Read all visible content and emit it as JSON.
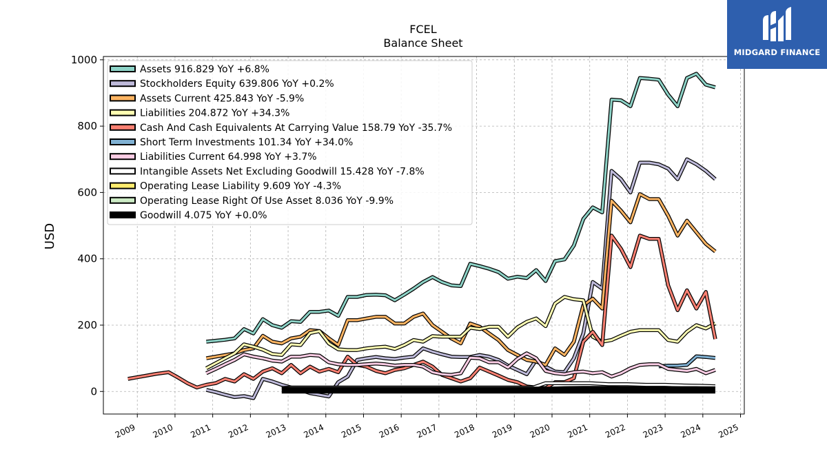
{
  "brand": {
    "name": "MIDGARD FINANCE"
  },
  "chart_data": {
    "type": "line",
    "title": "FCEL",
    "subtitle": "Balance  Sheet",
    "xlabel": "",
    "ylabel": "USD",
    "xlim": [
      2008.1,
      2025.1
    ],
    "ylim": [
      -68,
      1010
    ],
    "x_ticks": [
      "2009",
      "2010",
      "2011",
      "2012",
      "2013",
      "2014",
      "2015",
      "2016",
      "2017",
      "2018",
      "2019",
      "2020",
      "2021",
      "2022",
      "2023",
      "2024",
      "2025"
    ],
    "y_ticks": [
      "0",
      "200",
      "400",
      "600",
      "800",
      "1000"
    ],
    "grid": true,
    "legend_position": "top-left",
    "series": [
      {
        "name": "Assets",
        "legend": "Assets  916.829 YoY +6.8%",
        "color": "#8dd3c7",
        "x": [
          2010.83,
          2011.08,
          2011.33,
          2011.58,
          2011.83,
          2012.08,
          2012.33,
          2012.58,
          2012.83,
          2013.08,
          2013.33,
          2013.58,
          2013.83,
          2014.08,
          2014.33,
          2014.58,
          2014.83,
          2015.08,
          2015.33,
          2015.58,
          2015.83,
          2016.08,
          2016.33,
          2016.58,
          2016.83,
          2017.08,
          2017.33,
          2017.58,
          2017.83,
          2018.08,
          2018.33,
          2018.58,
          2018.83,
          2019.08,
          2019.33,
          2019.58,
          2019.83,
          2020.08,
          2020.33,
          2020.58,
          2020.83,
          2021.08,
          2021.33,
          2021.58,
          2021.83,
          2022.08,
          2022.33,
          2022.58,
          2022.83,
          2023.08,
          2023.33,
          2023.58,
          2023.83,
          2024.08,
          2024.33
        ],
        "y": [
          150,
          153,
          156,
          160,
          188,
          175,
          218,
          200,
          192,
          212,
          210,
          240,
          240,
          244,
          228,
          285,
          285,
          291,
          292,
          290,
          275,
          292,
          310,
          330,
          345,
          330,
          320,
          318,
          385,
          378,
          370,
          360,
          340,
          346,
          342,
          366,
          333,
          393,
          398,
          440,
          520,
          555,
          540,
          880,
          878,
          860,
          945,
          943,
          940,
          895,
          860,
          945,
          958,
          925,
          917
        ]
      },
      {
        "name": "Stockholders Equity",
        "legend": "Stockholders Equity  639.806 YoY +0.2%",
        "color": "#bebada",
        "x": [
          2010.83,
          2011.08,
          2011.33,
          2011.58,
          2011.83,
          2012.08,
          2012.33,
          2012.58,
          2012.83,
          2013.08,
          2013.33,
          2013.58,
          2013.83,
          2014.08,
          2014.33,
          2014.58,
          2014.83,
          2015.08,
          2015.33,
          2015.58,
          2015.83,
          2016.08,
          2016.33,
          2016.58,
          2016.83,
          2017.08,
          2017.33,
          2017.58,
          2017.83,
          2018.08,
          2018.33,
          2018.58,
          2018.83,
          2019.08,
          2019.33,
          2019.58,
          2019.83,
          2020.08,
          2020.33,
          2020.58,
          2020.83,
          2021.08,
          2021.33,
          2021.58,
          2021.83,
          2022.08,
          2022.33,
          2022.58,
          2022.83,
          2023.08,
          2023.33,
          2023.58,
          2023.83,
          2024.08,
          2024.33
        ],
        "y": [
          5,
          -2,
          -10,
          -17,
          -14,
          -20,
          38,
          30,
          20,
          12,
          5,
          -5,
          -10,
          -15,
          28,
          45,
          95,
          100,
          104,
          100,
          98,
          102,
          105,
          130,
          120,
          112,
          105,
          104,
          104,
          110,
          105,
          95,
          78,
          65,
          52,
          95,
          75,
          60,
          58,
          100,
          175,
          330,
          310,
          665,
          640,
          600,
          690,
          690,
          685,
          672,
          640,
          700,
          685,
          665,
          640
        ]
      },
      {
        "name": "Assets Current",
        "legend": "Assets Current  425.843 YoY -5.9%",
        "color": "#fdb462",
        "x": [
          2010.83,
          2011.08,
          2011.33,
          2011.58,
          2011.83,
          2012.08,
          2012.33,
          2012.58,
          2012.83,
          2013.08,
          2013.33,
          2013.58,
          2013.83,
          2014.08,
          2014.33,
          2014.58,
          2014.83,
          2015.08,
          2015.33,
          2015.58,
          2015.83,
          2016.08,
          2016.33,
          2016.58,
          2016.83,
          2017.08,
          2017.33,
          2017.58,
          2017.83,
          2018.08,
          2018.33,
          2018.58,
          2018.83,
          2019.08,
          2019.33,
          2019.58,
          2019.83,
          2020.08,
          2020.33,
          2020.58,
          2020.83,
          2021.08,
          2021.33,
          2021.58,
          2021.83,
          2022.08,
          2022.33,
          2022.58,
          2022.83,
          2023.08,
          2023.33,
          2023.58,
          2023.83,
          2024.08,
          2024.33
        ],
        "y": [
          100,
          105,
          110,
          115,
          125,
          130,
          168,
          150,
          145,
          160,
          165,
          185,
          182,
          160,
          140,
          215,
          215,
          220,
          225,
          225,
          205,
          205,
          225,
          235,
          200,
          180,
          160,
          145,
          205,
          195,
          175,
          155,
          125,
          110,
          95,
          90,
          80,
          130,
          110,
          150,
          260,
          280,
          250,
          575,
          545,
          510,
          595,
          580,
          580,
          530,
          470,
          515,
          480,
          445,
          422
        ]
      },
      {
        "name": "Liabilities",
        "legend": "Liabilities  204.872 YoY +34.3%",
        "color": "#ffffb3",
        "x": [
          2010.83,
          2011.08,
          2011.33,
          2011.58,
          2011.83,
          2012.08,
          2012.33,
          2012.58,
          2012.83,
          2013.08,
          2013.33,
          2013.58,
          2013.83,
          2014.08,
          2014.33,
          2014.58,
          2014.83,
          2015.08,
          2015.33,
          2015.58,
          2015.83,
          2016.08,
          2016.33,
          2016.58,
          2016.83,
          2017.08,
          2017.33,
          2017.58,
          2017.83,
          2018.08,
          2018.33,
          2018.58,
          2018.83,
          2019.08,
          2019.33,
          2019.58,
          2019.83,
          2020.08,
          2020.33,
          2020.58,
          2020.83,
          2021.08,
          2021.33,
          2021.58,
          2021.83,
          2022.08,
          2022.33,
          2022.58,
          2022.83,
          2023.08,
          2023.33,
          2023.58,
          2023.83,
          2024.08,
          2024.33
        ],
        "y": [
          70,
          85,
          100,
          115,
          142,
          135,
          126,
          113,
          110,
          142,
          140,
          176,
          182,
          145,
          127,
          125,
          125,
          130,
          133,
          135,
          128,
          140,
          155,
          150,
          167,
          165,
          165,
          165,
          192,
          188,
          195,
          195,
          165,
          193,
          210,
          220,
          197,
          265,
          285,
          278,
          275,
          165,
          150,
          155,
          168,
          180,
          185,
          185,
          185,
          155,
          150,
          180,
          200,
          190,
          205
        ]
      },
      {
        "name": "Cash And Cash Equivalents At Carrying Value",
        "legend": "Cash And Cash Equivalents At Carrying Value  158.79 YoY -35.7%",
        "color": "#fb8072",
        "x": [
          2008.75,
          2009.0,
          2009.25,
          2009.5,
          2009.83,
          2010.08,
          2010.33,
          2010.58,
          2010.83,
          2011.08,
          2011.33,
          2011.58,
          2011.83,
          2012.08,
          2012.33,
          2012.58,
          2012.83,
          2013.08,
          2013.33,
          2013.58,
          2013.83,
          2014.08,
          2014.33,
          2014.58,
          2014.83,
          2015.08,
          2015.33,
          2015.58,
          2015.83,
          2016.08,
          2016.33,
          2016.58,
          2016.83,
          2017.08,
          2017.33,
          2017.58,
          2017.83,
          2018.08,
          2018.33,
          2018.58,
          2018.83,
          2019.08,
          2019.33,
          2019.58,
          2019.83,
          2020.08,
          2020.33,
          2020.58,
          2020.83,
          2021.08,
          2021.33,
          2021.58,
          2021.83,
          2022.08,
          2022.33,
          2022.58,
          2022.83,
          2023.08,
          2023.33,
          2023.58,
          2023.83,
          2024.08,
          2024.33
        ],
        "y": [
          38,
          43,
          48,
          53,
          58,
          42,
          25,
          12,
          20,
          25,
          38,
          30,
          52,
          38,
          60,
          70,
          55,
          80,
          55,
          75,
          60,
          68,
          58,
          105,
          80,
          75,
          62,
          55,
          65,
          70,
          80,
          90,
          75,
          50,
          40,
          30,
          40,
          72,
          60,
          48,
          35,
          28,
          15,
          12,
          10,
          28,
          28,
          40,
          150,
          180,
          140,
          470,
          430,
          375,
          470,
          460,
          460,
          320,
          245,
          305,
          250,
          300,
          158
        ]
      },
      {
        "name": "Short Term Investments",
        "legend": "Short Term Investments  101.34 YoY +34.0%",
        "color": "#80b1d3",
        "x": [
          2022.83,
          2023.08,
          2023.33,
          2023.58,
          2023.83,
          2024.08,
          2024.33
        ],
        "y": [
          76,
          78,
          78,
          80,
          106,
          104,
          101
        ]
      },
      {
        "name": "Liabilities Current",
        "legend": "Liabilities Current  64.998 YoY +3.7%",
        "color": "#fccde5",
        "x": [
          2010.83,
          2011.08,
          2011.33,
          2011.58,
          2011.83,
          2012.08,
          2012.33,
          2012.58,
          2012.83,
          2013.08,
          2013.33,
          2013.58,
          2013.83,
          2014.08,
          2014.33,
          2014.58,
          2014.83,
          2015.08,
          2015.33,
          2015.58,
          2015.83,
          2016.08,
          2016.33,
          2016.58,
          2016.83,
          2017.08,
          2017.33,
          2017.58,
          2017.83,
          2018.08,
          2018.33,
          2018.58,
          2018.83,
          2019.08,
          2019.33,
          2019.58,
          2019.83,
          2020.08,
          2020.33,
          2020.58,
          2020.83,
          2021.08,
          2021.33,
          2021.58,
          2021.83,
          2022.08,
          2022.33,
          2022.58,
          2022.83,
          2023.08,
          2023.33,
          2023.58,
          2023.83,
          2024.08,
          2024.33
        ],
        "y": [
          55,
          68,
          82,
          95,
          112,
          105,
          100,
          93,
          90,
          105,
          105,
          110,
          108,
          88,
          82,
          80,
          80,
          82,
          84,
          82,
          78,
          80,
          80,
          75,
          58,
          52,
          50,
          55,
          102,
          100,
          88,
          88,
          72,
          98,
          115,
          100,
          62,
          55,
          52,
          58,
          60,
          55,
          58,
          45,
          55,
          70,
          80,
          82,
          82,
          68,
          65,
          62,
          68,
          55,
          65
        ]
      },
      {
        "name": "Intangible Assets Net Excluding Goodwill",
        "legend": "Intangible Assets Net Excluding Goodwill  15.428 YoY -7.8%",
        "color": "#ffffff",
        "x": [
          2012.83,
          2013.08,
          2013.33,
          2013.58,
          2013.83,
          2014.08,
          2014.5,
          2015.0,
          2015.5,
          2016.0,
          2016.5,
          2017.0,
          2017.5,
          2018.0,
          2018.5,
          2019.0,
          2019.5,
          2019.83,
          2020.08,
          2020.5,
          2021.0,
          2021.5,
          2022.0,
          2022.5,
          2023.0,
          2023.5,
          2024.0,
          2024.33
        ],
        "y": [
          10,
          12,
          12,
          12,
          12,
          12,
          12,
          12,
          12,
          12,
          12,
          12,
          12,
          12,
          12,
          12,
          12,
          25,
          25,
          25,
          25,
          22,
          22,
          20,
          20,
          18,
          17,
          15.4
        ]
      },
      {
        "name": "Operating Lease Liability",
        "legend": "Operating Lease Liability  9.609 YoY -4.3%",
        "color": "#ffed6f",
        "x": [
          2019.83,
          2020.33,
          2020.83,
          2021.33,
          2021.83,
          2022.33,
          2022.83,
          2023.33,
          2023.83,
          2024.33
        ],
        "y": [
          8,
          10,
          11,
          11,
          10,
          10,
          10,
          10,
          10,
          9.6
        ]
      },
      {
        "name": "Operating Lease Right Of Use Asset",
        "legend": "Operating Lease Right Of Use Asset  8.036 YoY -9.9%",
        "color": "#ccebc5",
        "x": [
          2019.83,
          2020.33,
          2020.83,
          2021.33,
          2021.83,
          2022.33,
          2022.83,
          2023.33,
          2023.83,
          2024.33
        ],
        "y": [
          7,
          9,
          10,
          10,
          9.5,
          9,
          9,
          9,
          9,
          8
        ]
      },
      {
        "name": "Goodwill",
        "legend": "Goodwill  4.075 YoY +0.0%",
        "color": "#000000",
        "x": [
          2012.83,
          2013.33,
          2014.0,
          2015.0,
          2016.0,
          2017.0,
          2018.0,
          2019.0,
          2020.0,
          2021.0,
          2022.0,
          2023.0,
          2024.0,
          2024.33
        ],
        "y": [
          4.1,
          4.1,
          4.1,
          4.1,
          4.1,
          4.1,
          4.1,
          4.1,
          4.1,
          4.1,
          4.1,
          4.1,
          4.1,
          4.1
        ]
      }
    ]
  }
}
